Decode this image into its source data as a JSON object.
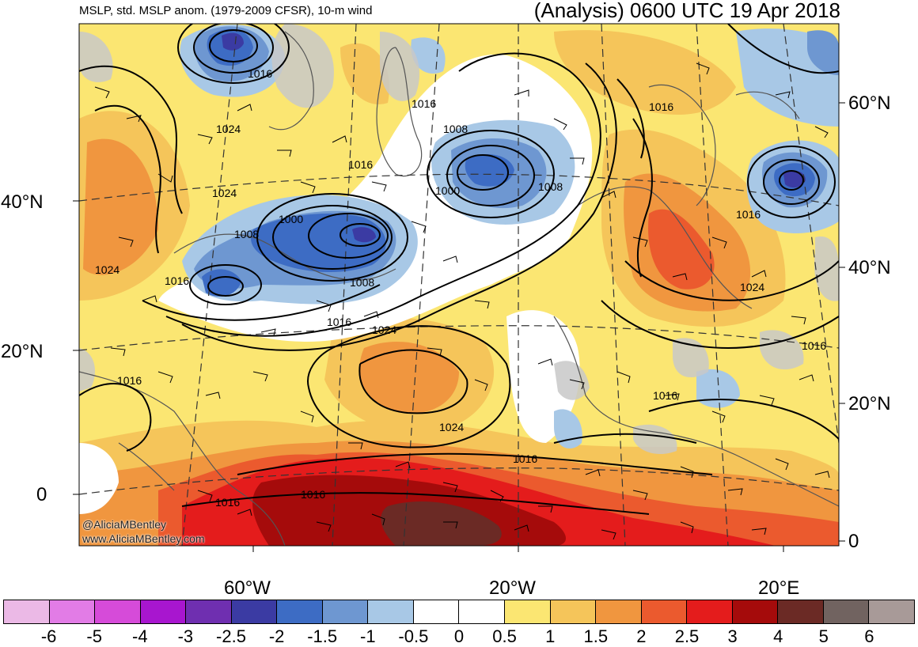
{
  "header": {
    "left_title": "MSLP, std. MSLP anom. (1979-2009 CFSR), 10-m wind",
    "right_title": "(Analysis) 0600 UTC 19 Apr 2018"
  },
  "axes": {
    "left_lat": [
      "40°N",
      "20°N",
      "0"
    ],
    "right_lat": [
      "60°N",
      "40°N",
      "20°N",
      "0"
    ],
    "bottom_lon": [
      "60°W",
      "20°W",
      "20°E"
    ]
  },
  "isobar_labels": [
    "1016",
    "1024",
    "1016",
    "1008",
    "1024",
    "1016",
    "1000",
    "1008",
    "1000",
    "1008",
    "1016",
    "1008",
    "1024",
    "1016",
    "1024",
    "1016",
    "1016",
    "1016",
    "1016",
    "1016",
    "1024",
    "1016",
    "1024",
    "1016",
    "1016",
    "1016",
    "1016"
  ],
  "credit": {
    "handle": "@AliciaMBentley",
    "url": "www.AliciaMBentley.com"
  },
  "colorbar": {
    "colors": [
      "#ebb9e6",
      "#e27ce6",
      "#d64bd9",
      "#a816cf",
      "#6f2fb0",
      "#3b3ba3",
      "#3d6cc4",
      "#6e97d1",
      "#a8c8e6",
      "#ffffff",
      "#ffffff",
      "#fbe672",
      "#f5c55a",
      "#f0963f",
      "#eb5a2e",
      "#e41c1c",
      "#a50b0b",
      "#6b2a25",
      "#716360",
      "#a89a98"
    ],
    "tick_labels": [
      "-6",
      "-5",
      "-4",
      "-3",
      "-2.5",
      "-2",
      "-1.5",
      "-1",
      "-0.5",
      "0",
      "0.5",
      "1",
      "1.5",
      "2",
      "2.5",
      "3",
      "4",
      "5",
      "6"
    ]
  },
  "palette": {
    "ocean_base": "#fbe672",
    "land_outline": "#555555",
    "isobar": "#000000",
    "wind_barb": "#000000",
    "grid": "#333333",
    "missing_gray": "#c8c8c8"
  }
}
